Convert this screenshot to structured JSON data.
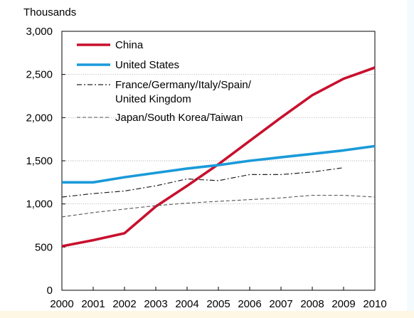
{
  "chart_data": {
    "type": "line",
    "ylabel": "Thousands",
    "ylim": [
      0,
      3000
    ],
    "yticks": [
      0,
      500,
      1000,
      1500,
      2000,
      2500,
      3000
    ],
    "ytick_labels": [
      "0",
      "500",
      "1,000",
      "1,500",
      "2,000",
      "2,500",
      "3,000"
    ],
    "x": [
      2000,
      2001,
      2002,
      2003,
      2004,
      2005,
      2006,
      2007,
      2008,
      2009,
      2010
    ],
    "xtick_labels": [
      "2000",
      "2001",
      "2002",
      "2003",
      "2004",
      "2005",
      "2006",
      "2007",
      "2008",
      "2009",
      "2010"
    ],
    "grid": true,
    "legend_position": "top-left",
    "series": [
      {
        "name": "China",
        "color": "#c8102e",
        "style": "solid-thick",
        "values": [
          510,
          580,
          660,
          970,
          1210,
          1460,
          1730,
          2000,
          2260,
          2450,
          2580
        ]
      },
      {
        "name": "United States",
        "color": "#1a9ad9",
        "style": "solid-thick",
        "values": [
          1250,
          1250,
          1310,
          1360,
          1410,
          1450,
          1500,
          1540,
          1580,
          1620,
          1670
        ]
      },
      {
        "name": "France/Germany/Italy/Spain/\nUnited Kingdom",
        "color": "#222222",
        "style": "dash-dot",
        "values": [
          1080,
          1120,
          1150,
          1210,
          1290,
          1270,
          1340,
          1340,
          1370,
          1420,
          null
        ]
      },
      {
        "name": "Japan/South Korea/Taiwan",
        "color": "#555555",
        "style": "dashed",
        "values": [
          850,
          900,
          940,
          980,
          1010,
          1030,
          1050,
          1070,
          1100,
          1100,
          1080
        ]
      }
    ]
  }
}
